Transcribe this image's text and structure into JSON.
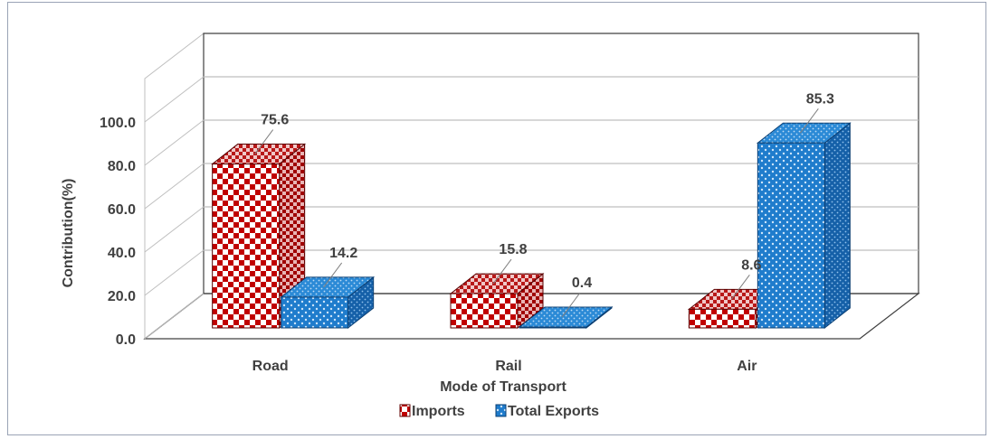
{
  "chart_data": {
    "type": "bar",
    "categories": [
      "Road",
      "Rail",
      "Air"
    ],
    "series": [
      {
        "name": "Imports",
        "values": [
          75.6,
          15.8,
          8.6
        ],
        "color": "#c00000"
      },
      {
        "name": "Total Exports",
        "values": [
          14.2,
          0.4,
          85.3
        ],
        "color": "#1f7ccc"
      }
    ],
    "title": "",
    "xlabel": "Mode of Transport",
    "ylabel": "Contribution(%)",
    "ylim": [
      0,
      100
    ],
    "yticks": [
      "0.0",
      "20.0",
      "40.0",
      "60.0",
      "80.0",
      "100.0"
    ],
    "grid": true,
    "legend": "bottom"
  }
}
